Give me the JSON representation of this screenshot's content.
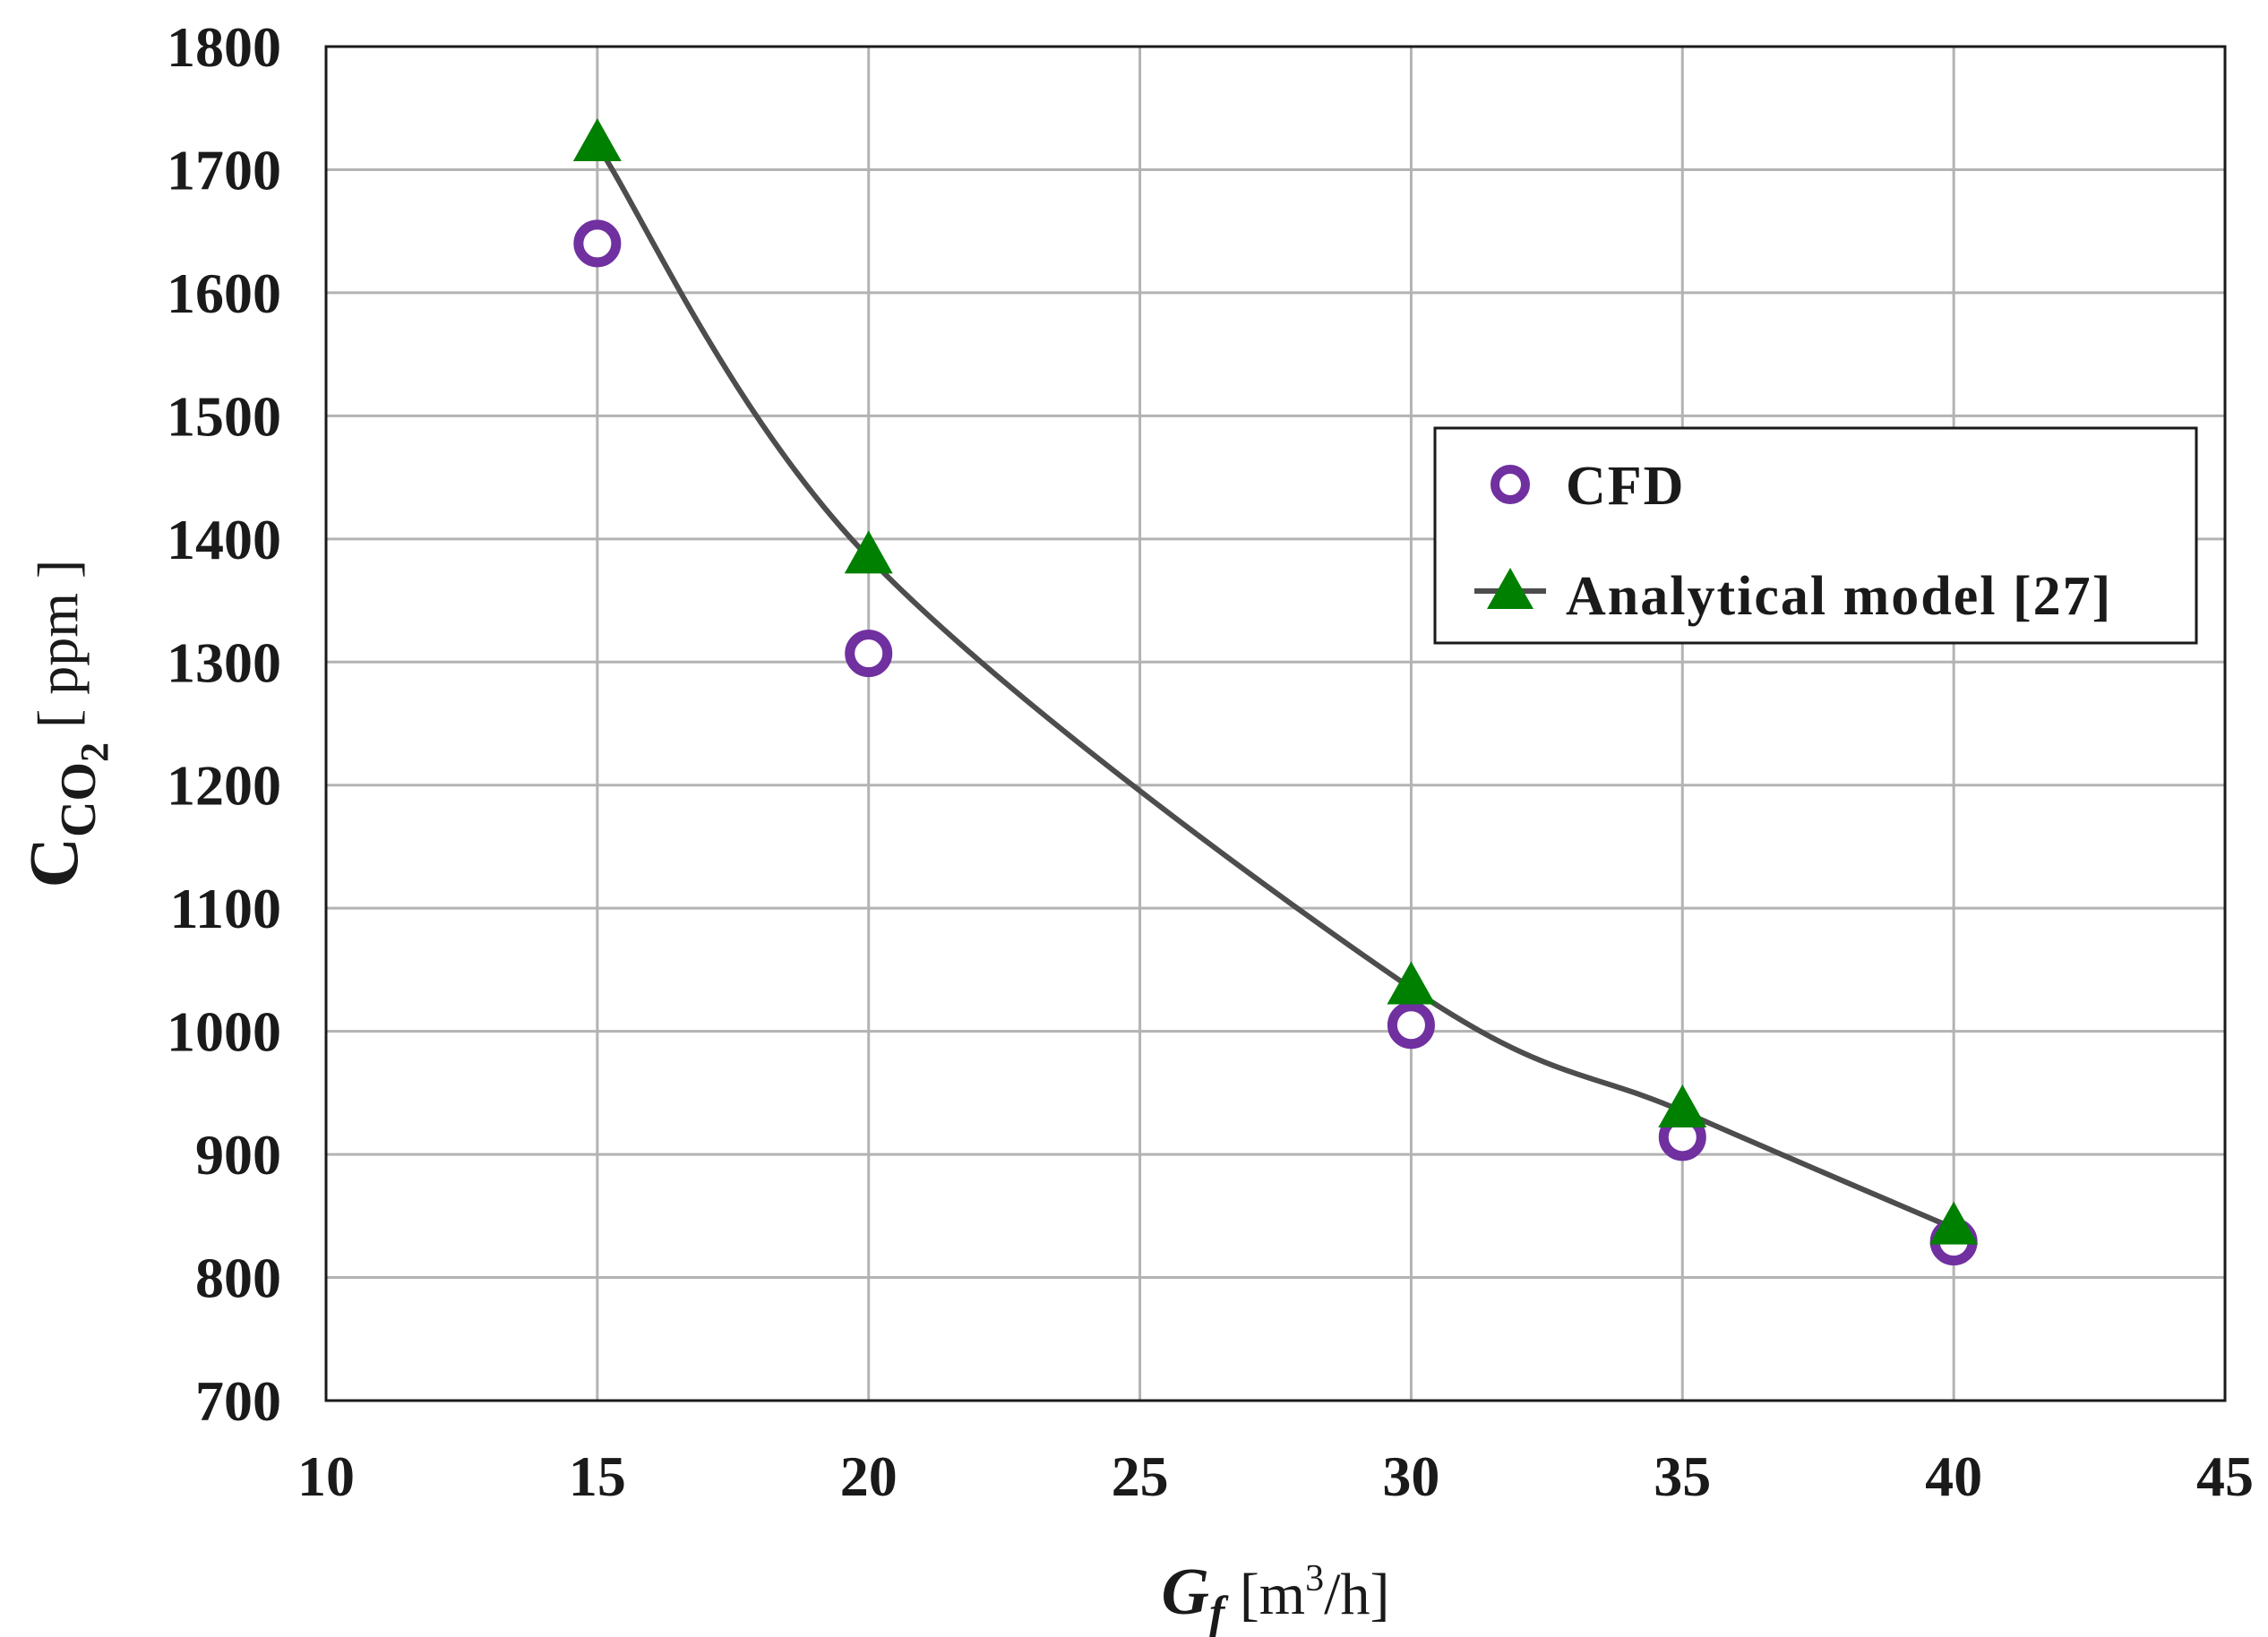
{
  "chart_data": {
    "type": "scatter",
    "title": "",
    "xlabel": {
      "symbol": "G",
      "subscript": "f",
      "unit_open": " [m",
      "unit_sup": "3",
      "unit_close": "/h]"
    },
    "ylabel": {
      "symbol": "C",
      "subscript": "CO",
      "subscript2": "2",
      "unit": " [ ppm ]"
    },
    "xlim": [
      10,
      45
    ],
    "ylim": [
      700,
      1800
    ],
    "xticks": [
      "10",
      "15",
      "20",
      "25",
      "30",
      "35",
      "40",
      "45"
    ],
    "yticks": [
      "700",
      "800",
      "900",
      "1000",
      "1100",
      "1200",
      "1300",
      "1400",
      "1500",
      "1600",
      "1700",
      "1800"
    ],
    "grid": true,
    "legend_position": "right",
    "series": [
      {
        "name": "CFD",
        "marker": "circle-open",
        "line": false,
        "color": "#7030a0",
        "x": [
          15,
          20,
          30,
          35,
          40
        ],
        "y": [
          1640,
          1307,
          1005,
          914,
          829
        ]
      },
      {
        "name": "Analytical model [27]",
        "marker": "triangle",
        "line": true,
        "color": "#008000",
        "line_color": "#4d4d4d",
        "x": [
          15,
          20,
          30,
          35,
          40
        ],
        "y": [
          1720,
          1385,
          1035,
          935,
          840
        ]
      }
    ]
  }
}
